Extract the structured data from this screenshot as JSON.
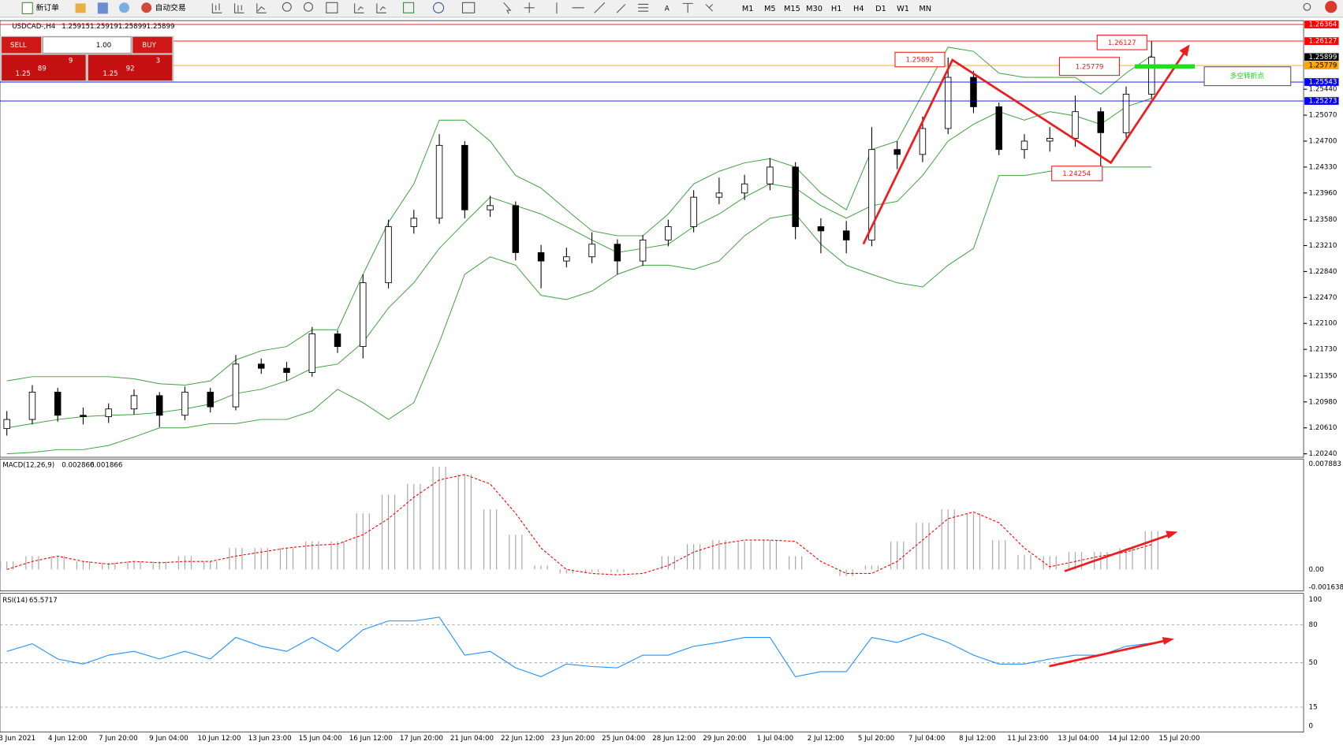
{
  "toolbar": {
    "new_order": "新订单",
    "auto_trade": "自动交易",
    "timeframes": [
      "M1",
      "M5",
      "M15",
      "M30",
      "H1",
      "H4",
      "D1",
      "W1",
      "MN"
    ]
  },
  "order_panel": {
    "sell": "SELL",
    "buy": "BUY",
    "lots": "1.00",
    "bid_prefix": "1.25",
    "bid_big": "89",
    "bid_small": "9",
    "ask_prefix": "1.25",
    "ask_big": "92",
    "ask_small": "3"
  },
  "symbol": "USDCAD-,H4",
  "quote": [
    1.25915,
    1.25919,
    1.25899,
    1.25899
  ],
  "xlabels": [
    "3 Jun 2021",
    "4 Jun 12:00",
    "7 Jun 20:00",
    "9 Jun 04:00",
    "10 Jun 12:00",
    "13 Jun 23:00",
    "15 Jun 04:00",
    "16 Jun 12:00",
    "17 Jun 20:00",
    "21 Jun 04:00",
    "22 Jun 12:00",
    "23 Jun 20:00",
    "25 Jun 04:00",
    "28 Jun 12:00",
    "29 Jun 20:00",
    "1 Jul 04:00",
    "2 Jul 12:00",
    "5 Jul 20:00",
    "7 Jul 04:00",
    "8 Jul 12:00",
    "11 Jul 23:00",
    "13 Jul 04:00",
    "14 Jul 12:00",
    "15 Jul 20:00"
  ],
  "annotations": {
    "peak": 1.25892,
    "high": 1.26127,
    "pivot": 1.25779,
    "low": 1.24254,
    "pivot_note": "多空转折点"
  },
  "chart_data": [
    {
      "type": "candlestick",
      "color": "#000000",
      "open": [
        1.206,
        1.2073,
        1.2112,
        1.2079,
        1.2077,
        1.2088,
        1.2107,
        1.2079,
        1.2112,
        1.2091,
        1.2152,
        1.2146,
        1.214,
        1.2195,
        1.2177,
        1.2268,
        1.2348,
        1.236,
        1.2464,
        1.2372,
        1.2378,
        1.2311,
        1.2299,
        1.2305,
        1.2323,
        1.2299,
        1.2329,
        1.2348,
        1.239,
        1.2396,
        1.2409,
        1.2433,
        1.2348,
        1.2342,
        1.2329,
        1.2458,
        1.2451,
        1.2488,
        1.2561,
        1.2519,
        1.2458,
        1.247,
        1.2474,
        1.2512,
        1.2482,
        1.2537
      ],
      "high": [
        1.2085,
        1.2122,
        1.2118,
        1.209,
        1.2096,
        1.2116,
        1.2112,
        1.212,
        1.2118,
        1.2165,
        1.216,
        1.2155,
        1.2205,
        1.22,
        1.228,
        1.2358,
        1.2372,
        1.248,
        1.247,
        1.2392,
        1.2384,
        1.2322,
        1.2318,
        1.234,
        1.233,
        1.2336,
        1.2358,
        1.24,
        1.2418,
        1.2422,
        1.2446,
        1.244,
        1.236,
        1.2356,
        1.249,
        1.247,
        1.2505,
        1.25892,
        1.257,
        1.2525,
        1.248,
        1.249,
        1.2535,
        1.2518,
        1.2548,
        1.26127
      ],
      "low": [
        1.205,
        1.2066,
        1.207,
        1.2066,
        1.2068,
        1.208,
        1.2062,
        1.2072,
        1.2083,
        1.2086,
        1.2138,
        1.2128,
        1.2134,
        1.2168,
        1.216,
        1.226,
        1.2338,
        1.2352,
        1.236,
        1.2362,
        1.23,
        1.226,
        1.229,
        1.2296,
        1.228,
        1.2292,
        1.232,
        1.234,
        1.238,
        1.2386,
        1.24,
        1.233,
        1.231,
        1.231,
        1.232,
        1.243,
        1.244,
        1.248,
        1.251,
        1.245,
        1.2445,
        1.2455,
        1.2462,
        1.24254,
        1.2475,
        1.253
      ],
      "close": [
        1.2073,
        1.2112,
        1.2079,
        1.2077,
        1.2088,
        1.2107,
        1.2079,
        1.2112,
        1.2091,
        1.2152,
        1.2146,
        1.214,
        1.2195,
        1.2177,
        1.2268,
        1.2348,
        1.236,
        1.2464,
        1.2372,
        1.2378,
        1.2311,
        1.2299,
        1.2305,
        1.2323,
        1.2299,
        1.2329,
        1.2348,
        1.239,
        1.2396,
        1.2409,
        1.2433,
        1.2348,
        1.2342,
        1.2329,
        1.2458,
        1.2451,
        1.2488,
        1.2561,
        1.2519,
        1.2458,
        1.247,
        1.2474,
        1.2512,
        1.2482,
        1.2537,
        1.25899
      ],
      "lines": [
        {
          "color": "#3ca03c",
          "values": [
            1.2128,
            1.2134,
            1.2134,
            1.2134,
            1.2134,
            1.2131,
            1.2124,
            1.2122,
            1.2128,
            1.2158,
            1.2171,
            1.2177,
            1.2201,
            1.2201,
            1.228,
            1.2354,
            1.2409,
            1.25,
            1.25,
            1.247,
            1.2421,
            1.2403,
            1.2372,
            1.2342,
            1.2335,
            1.2335,
            1.2366,
            1.2409,
            1.2427,
            1.2439,
            1.2445,
            1.2433,
            1.2396,
            1.2372,
            1.2458,
            1.247,
            1.2537,
            1.2604,
            1.2598,
            1.2567,
            1.2561,
            1.2561,
            1.2561,
            1.2537,
            1.2567,
            1.2592
          ]
        },
        {
          "color": "#3ca03c",
          "values": [
            1.2061,
            1.2067,
            1.2073,
            1.2077,
            1.2079,
            1.208,
            1.2083,
            1.2088,
            1.2095,
            1.211,
            1.2116,
            1.2128,
            1.2146,
            1.2152,
            1.2183,
            1.2232,
            1.2268,
            1.2317,
            1.2354,
            1.239,
            1.2378,
            1.2366,
            1.2348,
            1.2329,
            1.2311,
            1.2317,
            1.2323,
            1.2348,
            1.2366,
            1.239,
            1.2409,
            1.2403,
            1.2378,
            1.236,
            1.2378,
            1.2384,
            1.2421,
            1.247,
            1.2494,
            1.2512,
            1.25,
            1.2512,
            1.2506,
            1.2494,
            1.2519,
            1.2531
          ]
        },
        {
          "color": "#3ca03c",
          "values": [
            1.2024,
            1.2026,
            1.203,
            1.203,
            1.2036,
            1.2048,
            1.2061,
            1.2061,
            1.2067,
            1.2067,
            1.2073,
            1.2073,
            1.2085,
            1.2116,
            1.2097,
            1.2073,
            1.2097,
            1.2183,
            1.228,
            1.2305,
            1.2293,
            1.225,
            1.2244,
            1.2256,
            1.228,
            1.2293,
            1.2293,
            1.2287,
            1.2299,
            1.2335,
            1.236,
            1.2366,
            1.2323,
            1.2293,
            1.228,
            1.2268,
            1.2262,
            1.2293,
            1.2317,
            1.2421,
            1.2421,
            1.2427,
            1.2433,
            1.2433,
            1.2433,
            1.2433
          ]
        }
      ],
      "price_lines": [
        {
          "value": 1.26364,
          "color": "#ff0000"
        },
        {
          "value": 1.26127,
          "color": "#ff0000"
        },
        {
          "value": 1.25899,
          "color": "#000000"
        },
        {
          "value": 1.25779,
          "color": "#ffa500"
        },
        {
          "value": 1.25543,
          "color": "#0000ff"
        },
        {
          "value": 1.25273,
          "color": "#0000ff"
        }
      ],
      "ylim": [
        1.20203,
        1.26407
      ],
      "yticks": [
        {
          "value": 1.2024,
          "label": "1.20240"
        },
        {
          "value": 1.2061,
          "label": "1.20610"
        },
        {
          "value": 1.2098,
          "label": "1.20980"
        },
        {
          "value": 1.2135,
          "label": "1.21350"
        },
        {
          "value": 1.2173,
          "label": "1.21730"
        },
        {
          "value": 1.221,
          "label": "1.22100"
        },
        {
          "value": 1.2247,
          "label": "1.22470"
        },
        {
          "value": 1.2284,
          "label": "1.22840"
        },
        {
          "value": 1.2321,
          "label": "1.23210"
        },
        {
          "value": 1.2358,
          "label": "1.23580"
        },
        {
          "value": 1.2396,
          "label": "1.23960"
        },
        {
          "value": 1.2433,
          "label": "1.24330"
        },
        {
          "value": 1.247,
          "label": "1.24700"
        },
        {
          "value": 1.2507,
          "label": "1.25070"
        },
        {
          "value": 1.2544,
          "label": "1.25440"
        }
      ]
    },
    {
      "type": "macd",
      "title": "MACD(12,26,9)",
      "series": [
        {
          "type": "bar",
          "color": "#a8a8a8",
          "values": [
            0.0006,
            0.001,
            0.001,
            0.0006,
            0.0005,
            0.0006,
            0.0006,
            0.001,
            0.0006,
            0.0016,
            0.0016,
            0.0016,
            0.0021,
            0.0021,
            0.0042,
            0.0056,
            0.0064,
            0.0077,
            0.0071,
            0.0045,
            0.0026,
            0.0003,
            -0.0003,
            -0.0002,
            -0.0002,
            0,
            0.001,
            0.0019,
            0.0022,
            0.0021,
            0.0022,
            0.001,
            0,
            -0.0005,
            0.0003,
            0.0021,
            0.0035,
            0.0045,
            0.0042,
            0.0022,
            0.0011,
            0.001,
            0.0013,
            0.0013,
            0.0016,
            0.002866
          ]
        },
        {
          "type": "line",
          "color": "#ff0000",
          "dashed": true,
          "values": [
            0,
            0.0006,
            0.001,
            0.0006,
            0.0004,
            0.0006,
            0.0005,
            0.0006,
            0.0006,
            0.001,
            0.0013,
            0.0016,
            0.0018,
            0.0019,
            0.0026,
            0.0038,
            0.0054,
            0.0067,
            0.0071,
            0.0064,
            0.0042,
            0.0016,
            0,
            -0.0003,
            -0.0004,
            -0.0003,
            0.0003,
            0.0013,
            0.0019,
            0.0022,
            0.0022,
            0.0021,
            0.0006,
            -0.0003,
            -0.0003,
            0.0006,
            0.0022,
            0.0038,
            0.0043,
            0.0035,
            0.0016,
            0.0002,
            0.0006,
            0.001,
            0.0013,
            0.001866
          ]
        }
      ],
      "ylim": [
        -0.001638,
        0.007883
      ],
      "yticks": [
        -0.001638,
        {
          "value": 0,
          "label": "0.00"
        },
        0.007883
      ]
    },
    {
      "type": "line",
      "title": "RSI(14)",
      "color": "#1e90ff",
      "values": [
        59,
        65,
        53,
        49,
        56,
        59,
        53,
        59,
        53,
        70,
        63,
        59,
        70,
        59,
        76,
        83,
        83,
        86,
        56,
        59,
        46,
        39,
        49,
        47,
        46,
        56,
        56,
        63,
        66,
        70,
        70,
        39,
        43,
        43,
        70,
        66,
        73,
        66,
        56,
        49,
        49,
        53,
        56,
        56,
        63,
        65.5717
      ],
      "ylim": [
        0,
        100
      ],
      "yticks": [
        0,
        15,
        50,
        80,
        100
      ],
      "grid": true
    }
  ]
}
